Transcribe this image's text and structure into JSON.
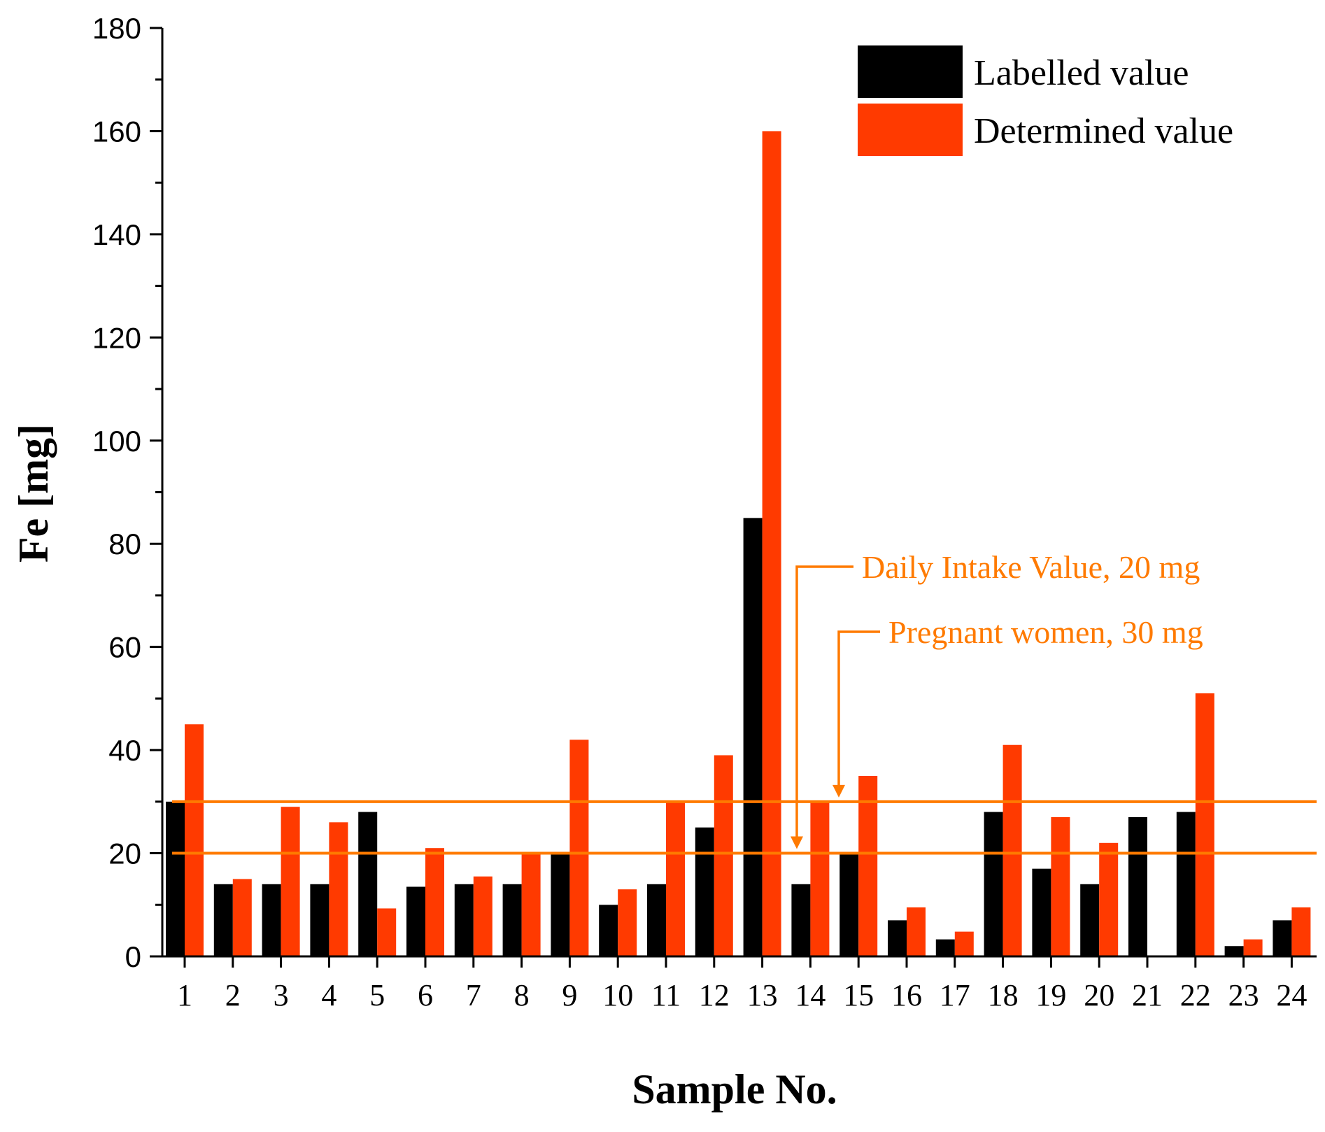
{
  "chart_data": {
    "type": "bar",
    "title": "",
    "xlabel": "Sample No.",
    "ylabel": "Fe [mg]",
    "ylim": [
      0,
      180
    ],
    "yticks": [
      "0",
      "20",
      "40",
      "60",
      "80",
      "100",
      "120",
      "140",
      "160",
      "180"
    ],
    "categories": [
      "1",
      "2",
      "3",
      "4",
      "5",
      "6",
      "7",
      "8",
      "9",
      "10",
      "11",
      "12",
      "13",
      "14",
      "15",
      "16",
      "17",
      "18",
      "19",
      "20",
      "21",
      "22",
      "23",
      "24"
    ],
    "series": [
      {
        "name": "Labelled value",
        "color": "#000000",
        "values": [
          30,
          14,
          14,
          14,
          28,
          13.5,
          14,
          14,
          20,
          10,
          14,
          25,
          85,
          14,
          20,
          7,
          3.3,
          28,
          17,
          14,
          27,
          28,
          2,
          7
        ]
      },
      {
        "name": "Determined value",
        "color": "#ff3a00",
        "values": [
          45,
          15,
          29,
          26,
          9.3,
          21,
          15.5,
          20,
          42,
          13,
          30,
          39,
          160,
          30,
          35,
          9.5,
          4.8,
          41,
          27,
          22,
          0,
          51,
          3.3,
          9.5
        ]
      }
    ],
    "reference_lines": [
      {
        "label": "Daily Intake Value, 20 mg",
        "value": 20,
        "color": "#ff7a00"
      },
      {
        "label": "Pregnant women, 30 mg",
        "value": 30,
        "color": "#ff7a00"
      }
    ],
    "legend_position": "top-right",
    "grid": false
  }
}
